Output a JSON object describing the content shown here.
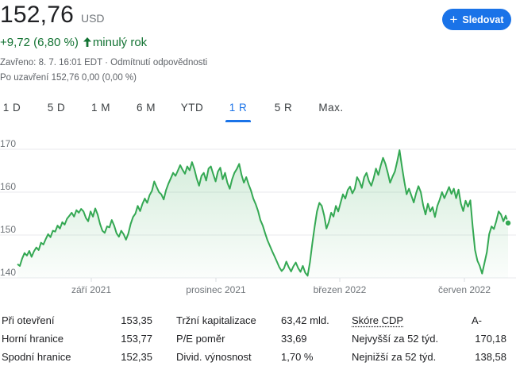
{
  "quote": {
    "price": "152,76",
    "currency": "USD",
    "change": "+9,72 (6,80 %)",
    "change_arrow": "up-arrow-icon",
    "period": "minulý rok",
    "closed_info": "Zavřeno: 8. 7. 16:01 EDT · Odmítnutí odpovědnosti",
    "after_close": "Po uzavření 152,76 0,00 (0,00 %)"
  },
  "follow_button": {
    "label": "Sledovat",
    "icon": "plus-icon"
  },
  "tabs": [
    {
      "label": "1 D",
      "active": false
    },
    {
      "label": "5 D",
      "active": false
    },
    {
      "label": "1 M",
      "active": false
    },
    {
      "label": "6 M",
      "active": false
    },
    {
      "label": "YTD",
      "active": false
    },
    {
      "label": "1 R",
      "active": true
    },
    {
      "label": "5 R",
      "active": false
    },
    {
      "label": "Max.",
      "active": false
    }
  ],
  "colors": {
    "line": "#34a853",
    "accent": "#1a73e8",
    "positive": "#137333"
  },
  "chart_data": {
    "type": "area",
    "y_ticks": [
      140,
      150,
      160,
      170
    ],
    "x_tick_labels": [
      "září 2021",
      "prosinec 2021",
      "březen 2022",
      "červen 2022"
    ],
    "ylim": [
      140,
      170
    ],
    "grid": true,
    "series": [
      {
        "values": [
          143.2,
          142.8,
          144.5,
          145.8,
          145.2,
          146.3,
          144.9,
          146.2,
          147.1,
          146.5,
          148.2,
          147.8,
          149.1,
          150.2,
          149.5,
          151.0,
          150.8,
          152.2,
          151.5,
          153.0,
          152.4,
          153.8,
          154.5,
          155.2,
          154.3,
          155.8,
          155.2,
          156.1,
          155.5,
          154.0,
          153.2,
          155.5,
          154.3,
          156.2,
          154.8,
          152.6,
          151.0,
          150.5,
          152.0,
          151.8,
          153.5,
          152.2,
          150.4,
          149.6,
          151.0,
          150.2,
          148.9,
          150.3,
          152.6,
          154.2,
          155.0,
          156.8,
          155.6,
          157.3,
          158.5,
          157.5,
          159.3,
          160.3,
          162.5,
          161.2,
          160.0,
          159.5,
          158.3,
          160.5,
          162.0,
          163.2,
          164.5,
          163.8,
          165.0,
          166.3,
          165.2,
          164.3,
          166.0,
          165.1,
          167.0,
          165.4,
          163.2,
          161.5,
          163.8,
          164.5,
          162.7,
          165.5,
          166.0,
          164.2,
          162.5,
          164.8,
          165.7,
          163.0,
          164.5,
          162.2,
          160.8,
          163.0,
          164.5,
          165.4,
          166.6,
          164.0,
          162.2,
          163.5,
          161.8,
          160.4,
          158.5,
          157.2,
          155.6,
          153.5,
          152.2,
          150.4,
          148.8,
          147.5,
          146.2,
          145.0,
          143.8,
          142.5,
          141.6,
          142.2,
          143.8,
          142.5,
          141.5,
          142.7,
          143.6,
          142.3,
          141.4,
          142.8,
          141.2,
          140.5,
          143.6,
          148.0,
          152.0,
          155.5,
          157.5,
          156.8,
          154.6,
          151.5,
          153.0,
          155.2,
          154.3,
          156.8,
          155.5,
          157.5,
          159.5,
          158.5,
          160.5,
          161.3,
          159.7,
          160.8,
          163.5,
          162.5,
          161.0,
          163.5,
          164.5,
          162.6,
          161.5,
          163.2,
          165.5,
          164.0,
          166.2,
          168.0,
          166.6,
          164.5,
          162.2,
          163.6,
          164.8,
          167.2,
          169.8,
          166.0,
          162.5,
          159.5,
          160.8,
          159.2,
          157.6,
          159.7,
          161.4,
          160.0,
          157.0,
          154.8,
          157.3,
          155.5,
          156.5,
          154.2,
          156.8,
          158.2,
          160.0,
          158.6,
          159.9,
          161.2,
          159.6,
          160.8,
          158.6,
          160.6,
          157.3,
          155.6,
          158.0,
          156.6,
          158.1,
          152.0,
          146.5,
          144.0,
          142.8,
          141.0,
          143.5,
          146.0,
          150.2,
          152.0,
          151.4,
          153.2,
          155.5,
          154.8,
          153.2,
          154.5,
          152.8
        ]
      }
    ]
  },
  "stats": {
    "col1": [
      {
        "label": "Při otevření",
        "value": "153,35"
      },
      {
        "label": "Horní hranice",
        "value": "153,77"
      },
      {
        "label": "Spodní hranice",
        "value": "152,35"
      }
    ],
    "col2": [
      {
        "label": "Tržní kapitalizace",
        "value": "63,42 mld."
      },
      {
        "label": "P/E poměr",
        "value": "33,69"
      },
      {
        "label": "Divid. výnosnost",
        "value": "1,70 %"
      }
    ],
    "col3": [
      {
        "label": "Skóre CDP",
        "value": "A-"
      },
      {
        "label": "Nejvyšší za 52 týd.",
        "value": "170,18"
      },
      {
        "label": "Nejnižší za 52 týd.",
        "value": "138,58"
      }
    ]
  }
}
